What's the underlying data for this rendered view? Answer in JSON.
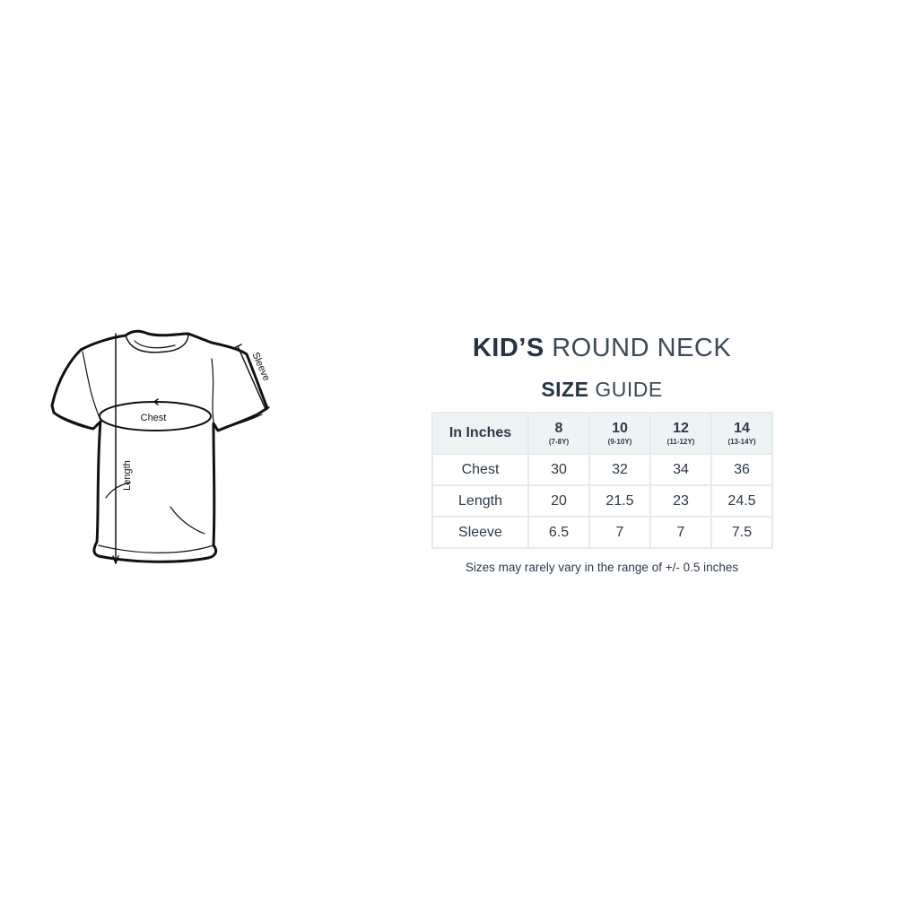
{
  "diagram": {
    "labels": {
      "chest": "Chest",
      "length": "Length",
      "sleeve": "Sleeve"
    }
  },
  "title": {
    "bold": "KID’S",
    "light": "ROUND NECK"
  },
  "subtitle": {
    "bold": "SIZE",
    "light": "GUIDE"
  },
  "table": {
    "corner": "In Inches",
    "columns": [
      {
        "size": "8",
        "age": "(7-8Y)"
      },
      {
        "size": "10",
        "age": "(9-10Y)"
      },
      {
        "size": "12",
        "age": "(11-12Y)"
      },
      {
        "size": "14",
        "age": "(13-14Y)"
      }
    ],
    "rows": [
      {
        "label": "Chest",
        "values": [
          "30",
          "32",
          "34",
          "36"
        ]
      },
      {
        "label": "Length",
        "values": [
          "20",
          "21.5",
          "23",
          "24.5"
        ]
      },
      {
        "label": "Sleeve",
        "values": [
          "6.5",
          "7",
          "7",
          "7.5"
        ]
      }
    ]
  },
  "note": "Sizes may rarely vary in the range of +/- 0.5 inches",
  "colors": {
    "text": "#253445",
    "header_bg": "#eef3f6",
    "border": "#e6ebef"
  }
}
